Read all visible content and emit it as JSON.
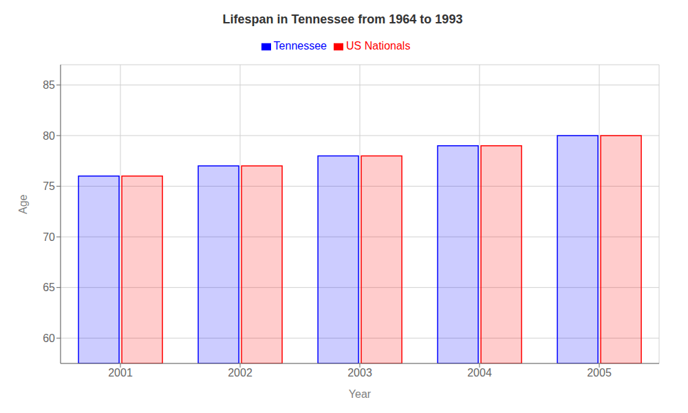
{
  "chart_data": {
    "type": "bar",
    "title": "Lifespan in Tennessee from 1964 to 1993",
    "xlabel": "Year",
    "ylabel": "Age",
    "categories": [
      "2001",
      "2002",
      "2003",
      "2004",
      "2005"
    ],
    "series": [
      {
        "name": "Tennessee",
        "color": "#0000ff",
        "values": [
          76,
          77,
          78,
          79,
          80
        ]
      },
      {
        "name": "US Nationals",
        "color": "#ff0000",
        "values": [
          76,
          77,
          78,
          79,
          80
        ]
      }
    ],
    "ylim": [
      57.5,
      87
    ],
    "yticks": [
      60,
      65,
      70,
      75,
      80,
      85
    ],
    "grid": true,
    "legend": "top"
  }
}
